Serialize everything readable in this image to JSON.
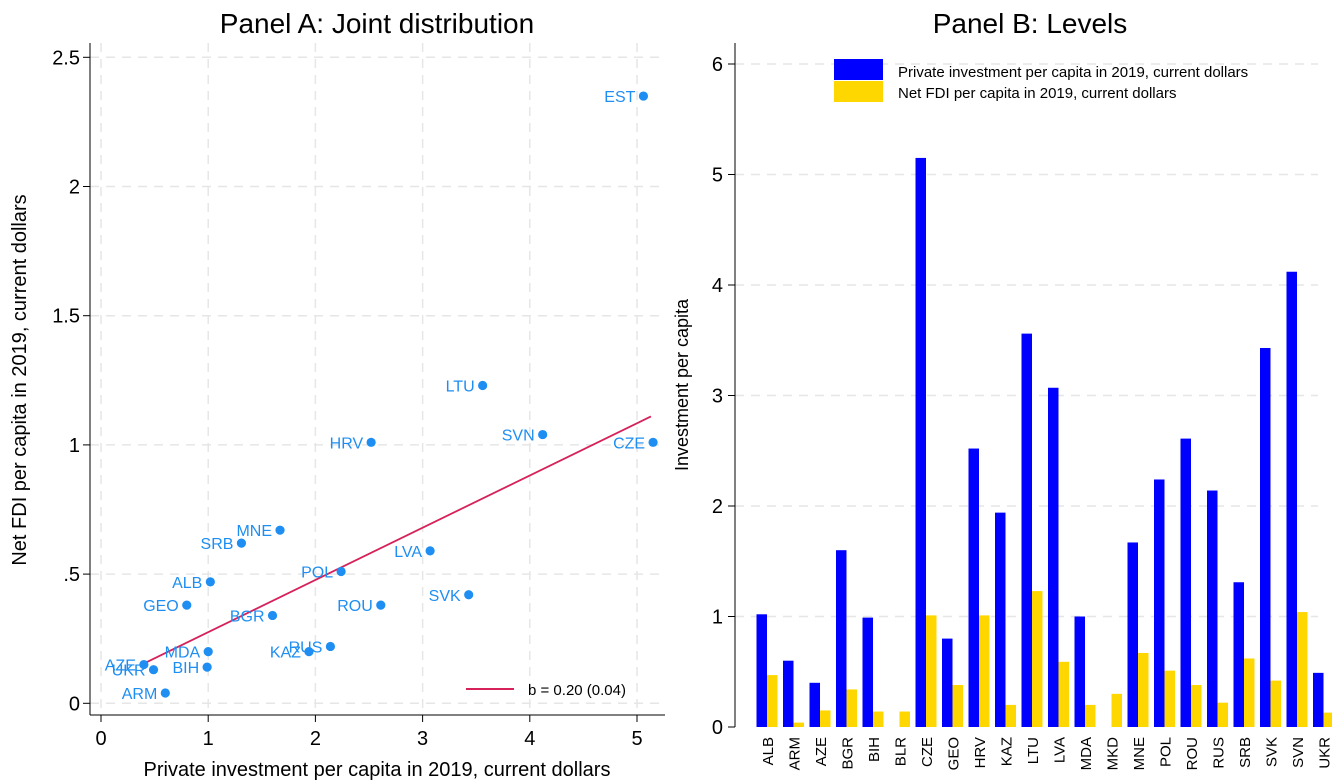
{
  "chart_data": [
    {
      "type": "scatter",
      "title": "Panel A: Joint distribution",
      "xlabel": "Private investment per capita in 2019, current dollars",
      "ylabel": "Net FDI per capita in 2019, current dollars",
      "xlim": [
        0,
        5.5
      ],
      "ylim": [
        0,
        2.55
      ],
      "xticks": [
        0,
        1,
        2,
        3,
        4,
        5
      ],
      "xtick_labels": [
        "0",
        "1",
        "2",
        "3",
        "4",
        "5"
      ],
      "yticks": [
        0,
        0.5,
        1,
        1.5,
        2,
        2.5
      ],
      "ytick_labels": [
        "0",
        ".5",
        "1",
        "1.5",
        "2",
        "2.5"
      ],
      "grid": true,
      "point_color": "#1e8ef2",
      "fit_color": "#d6215a",
      "points": [
        {
          "label": "ALB",
          "x": 1.02,
          "y": 0.47
        },
        {
          "label": "ARM",
          "x": 0.6,
          "y": 0.04
        },
        {
          "label": "AZE",
          "x": 0.4,
          "y": 0.15
        },
        {
          "label": "BGR",
          "x": 1.6,
          "y": 0.34
        },
        {
          "label": "BIH",
          "x": 0.99,
          "y": 0.14
        },
        {
          "label": "CZE",
          "x": 5.15,
          "y": 1.01
        },
        {
          "label": "EST",
          "x": 5.06,
          "y": 2.35
        },
        {
          "label": "GEO",
          "x": 0.8,
          "y": 0.38
        },
        {
          "label": "HRV",
          "x": 2.52,
          "y": 1.01
        },
        {
          "label": "KAZ",
          "x": 1.94,
          "y": 0.2
        },
        {
          "label": "LTU",
          "x": 3.56,
          "y": 1.23
        },
        {
          "label": "LVA",
          "x": 3.07,
          "y": 0.59
        },
        {
          "label": "MDA",
          "x": 1.0,
          "y": 0.2
        },
        {
          "label": "MNE",
          "x": 1.67,
          "y": 0.67
        },
        {
          "label": "POL",
          "x": 2.24,
          "y": 0.51
        },
        {
          "label": "ROU",
          "x": 2.61,
          "y": 0.38
        },
        {
          "label": "RUS",
          "x": 2.14,
          "y": 0.22
        },
        {
          "label": "SRB",
          "x": 1.31,
          "y": 0.62
        },
        {
          "label": "SVK",
          "x": 3.43,
          "y": 0.42
        },
        {
          "label": "SVN",
          "x": 4.12,
          "y": 1.04
        },
        {
          "label": "UKR",
          "x": 0.49,
          "y": 0.13
        }
      ],
      "fit_line": {
        "x": [
          0.38,
          5.13
        ],
        "y": [
          0.15,
          1.11
        ]
      },
      "legend": {
        "label": "b = 0.20 (0.04)",
        "position": "bottom-right"
      }
    },
    {
      "type": "bar",
      "title": "Panel B: Levels",
      "ylabel": "Investment per capita",
      "ylim": [
        0,
        6.2
      ],
      "yticks": [
        0,
        1,
        2,
        3,
        4,
        5,
        6
      ],
      "ytick_labels": [
        "0",
        "1",
        "2",
        "3",
        "4",
        "5",
        "6"
      ],
      "grid": true,
      "legend_position": "top",
      "categories": [
        "ALB",
        "ARM",
        "AZE",
        "BGR",
        "BIH",
        "BLR",
        "CZE",
        "GEO",
        "HRV",
        "KAZ",
        "LTU",
        "LVA",
        "MDA",
        "MKD",
        "MNE",
        "POL",
        "ROU",
        "RUS",
        "SRB",
        "SVK",
        "SVN",
        "UKR"
      ],
      "series": [
        {
          "name": "Private investment per capita in 2019, current dollars",
          "color": "#0000ff",
          "values": [
            1.02,
            0.6,
            0.4,
            1.6,
            0.99,
            0,
            5.15,
            0.8,
            2.52,
            1.94,
            3.56,
            3.07,
            1.0,
            0,
            1.67,
            2.24,
            2.61,
            2.14,
            1.31,
            3.43,
            4.12,
            0.49
          ]
        },
        {
          "name": "Net FDI per capita in 2019, current dollars",
          "color": "#ffd700",
          "values": [
            0.47,
            0.04,
            0.15,
            0.34,
            0.14,
            0.14,
            1.01,
            0.38,
            1.01,
            0.2,
            1.23,
            0.59,
            0.2,
            0.3,
            0.67,
            0.51,
            0.38,
            0.22,
            0.62,
            0.42,
            1.04,
            0.13
          ]
        }
      ]
    }
  ]
}
